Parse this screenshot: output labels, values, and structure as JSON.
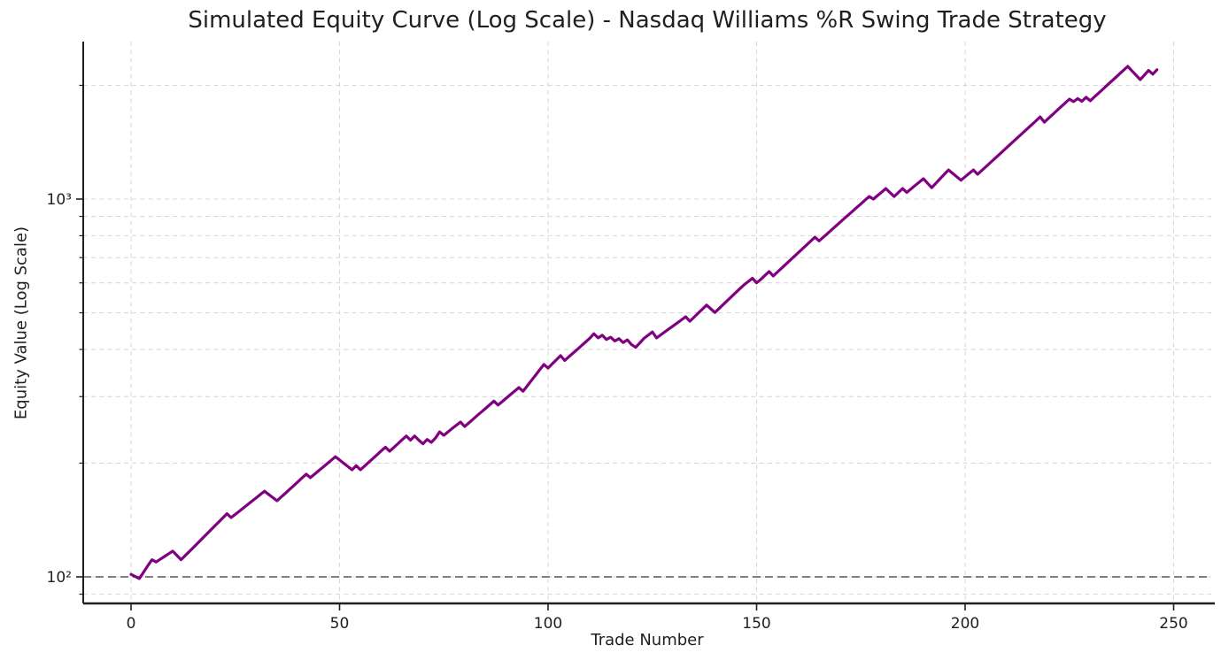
{
  "figure": {
    "background_color": "#ffffff"
  },
  "chart_data": {
    "type": "line",
    "title": "Simulated Equity Curve (Log Scale) - Nasdaq Williams %R Swing Trade Strategy",
    "xlabel": "Trade Number",
    "ylabel": "Equity Value (Log Scale)",
    "yscale": "log",
    "xlim": [
      -11.5,
      259
    ],
    "ylim": [
      85,
      2610
    ],
    "x_ticks": [
      0,
      50,
      100,
      150,
      200,
      250
    ],
    "y_major_ticks": [
      {
        "value": 100,
        "label": "10²"
      },
      {
        "value": 1000,
        "label": "10³"
      }
    ],
    "y_minor_ticks": [
      90,
      200,
      300,
      400,
      500,
      600,
      700,
      800,
      900,
      2000
    ],
    "grid": {
      "visible": true,
      "style": "dashed",
      "color": "#d8d8d8"
    },
    "reference_line": {
      "value": 100,
      "style": "dashed",
      "color": "#6e6e6e"
    },
    "legend": "none",
    "series": [
      {
        "name": "equity-curve",
        "color": "#800080",
        "x_start": 0,
        "x_step": 1,
        "values": [
          101.5,
          100.2,
          99,
          102.9,
          106.9,
          111,
          109.5,
          111.3,
          113.2,
          115.1,
          117,
          114,
          111,
          113.9,
          116.8,
          119.8,
          122.9,
          126.1,
          129.3,
          132.7,
          136.1,
          139.6,
          143.2,
          147,
          143.5,
          146.4,
          149.4,
          152.4,
          155.5,
          158.7,
          161.9,
          165.2,
          168.5,
          165.3,
          162.1,
          159,
          162.7,
          166.5,
          170.4,
          174.4,
          178.5,
          182.7,
          187,
          183,
          186.9,
          191,
          195.1,
          199.3,
          203.6,
          208,
          203.9,
          199.9,
          195.9,
          192,
          197,
          192,
          196.5,
          201.1,
          205.8,
          210.6,
          215.5,
          220.5,
          215,
          220,
          225.2,
          230.5,
          236,
          230,
          236,
          230,
          225,
          231,
          227,
          233,
          242,
          237,
          242,
          247,
          252,
          257,
          250,
          255.6,
          261.3,
          267.2,
          273.1,
          279.2,
          285.5,
          292,
          285,
          291.1,
          297.4,
          303.8,
          310.3,
          317,
          310,
          320.3,
          331,
          342,
          353.3,
          365,
          357,
          366.2,
          375.5,
          385,
          374,
          382.5,
          391.2,
          400.1,
          409.3,
          418.6,
          428.2,
          440,
          429,
          436,
          425,
          431,
          421,
          427,
          417,
          424,
          412,
          405,
          416,
          428,
          436,
          445,
          429,
          437,
          445.1,
          453.4,
          461.8,
          470.4,
          479.1,
          488,
          475,
          486.9,
          499,
          511.4,
          524,
          512.3,
          501,
          513.2,
          525.8,
          538.7,
          551.9,
          565.4,
          579.3,
          593,
          605,
          617,
          600,
          613,
          628,
          643,
          626,
          641,
          656.3,
          672,
          688.1,
          704.6,
          721.4,
          738.7,
          756.4,
          774.5,
          793,
          775,
          792.7,
          810.8,
          829.4,
          848.3,
          867.7,
          887.5,
          907.8,
          928.5,
          949.8,
          971.5,
          993.7,
          1016,
          1000,
          1021.7,
          1043.7,
          1066,
          1040,
          1016,
          1040.8,
          1066,
          1041,
          1063.2,
          1085.9,
          1108.6,
          1132,
          1101.6,
          1072,
          1101.6,
          1132,
          1162.7,
          1194,
          1169.6,
          1145.7,
          1122,
          1145.7,
          1169.9,
          1194,
          1163,
          1190.4,
          1218.5,
          1247.2,
          1276.6,
          1306.7,
          1337.5,
          1369.1,
          1401.3,
          1434.4,
          1468.2,
          1502.8,
          1538.2,
          1574.5,
          1611.6,
          1650,
          1598,
          1635.9,
          1674.6,
          1714.3,
          1754.9,
          1796.5,
          1839,
          1811,
          1845,
          1815,
          1860,
          1820,
          1863,
          1907,
          1952.1,
          1998.2,
          2045.4,
          2093.7,
          2143.2,
          2193.8,
          2245,
          2185,
          2127,
          2071,
          2130,
          2190,
          2141,
          2200
        ]
      }
    ]
  }
}
